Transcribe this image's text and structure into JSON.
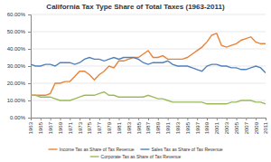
{
  "chart_data": {
    "type": "line",
    "title": "California Tax Type Share of Total Taxes (1963-2011)",
    "x": [
      1963,
      1964,
      1965,
      1966,
      1967,
      1968,
      1969,
      1970,
      1971,
      1972,
      1973,
      1974,
      1975,
      1976,
      1977,
      1978,
      1979,
      1980,
      1981,
      1982,
      1983,
      1984,
      1985,
      1986,
      1987,
      1988,
      1989,
      1990,
      1991,
      1992,
      1993,
      1994,
      1995,
      1996,
      1997,
      1998,
      1999,
      2000,
      2001,
      2002,
      2003,
      2004,
      2005,
      2006,
      2007,
      2008,
      2009,
      2010,
      2011
    ],
    "xlim": [
      1963,
      2011
    ],
    "xticks": [
      1963,
      1965,
      1967,
      1969,
      1971,
      1973,
      1975,
      1977,
      1979,
      1981,
      1983,
      1985,
      1987,
      1989,
      1991,
      1993,
      1995,
      1997,
      1999,
      2001,
      2003,
      2005,
      2007,
      2009,
      2011
    ],
    "ylim": [
      0,
      60
    ],
    "yticks": [
      {
        "value": 0,
        "label": "0.00%"
      },
      {
        "value": 10,
        "label": "10.00%"
      },
      {
        "value": 20,
        "label": "20.00%"
      },
      {
        "value": 30,
        "label": "30.00%"
      },
      {
        "value": 40,
        "label": "40.00%"
      },
      {
        "value": 50,
        "label": "50.00%"
      },
      {
        "value": 60,
        "label": "60.00%"
      }
    ],
    "grid": true,
    "legend": "bottom",
    "series": [
      {
        "name": "Income Tax as Share of Tax Revenue",
        "color": "#e8843a",
        "values": [
          13,
          13,
          13,
          13,
          14,
          20,
          20,
          21,
          21,
          24,
          27,
          27,
          25,
          22,
          25,
          27,
          30,
          29,
          33,
          33,
          34,
          35,
          35,
          37,
          39,
          35,
          35,
          36,
          34,
          34,
          34,
          34,
          35,
          37,
          39,
          41,
          44,
          48,
          49,
          42,
          41,
          42,
          43,
          45,
          46,
          47,
          44,
          43,
          43
        ]
      },
      {
        "name": "Sales Tax as Share of Tax Revenue",
        "color": "#4f81bd",
        "values": [
          31,
          30,
          30,
          31,
          31,
          30,
          32,
          32,
          32,
          31,
          32,
          34,
          35,
          34,
          34,
          33,
          34,
          35,
          34,
          35,
          35,
          35,
          34,
          32,
          31,
          32,
          32,
          32,
          33,
          31,
          30,
          30,
          30,
          29,
          28,
          27,
          30,
          31,
          31,
          30,
          30,
          29,
          29,
          28,
          28,
          29,
          30,
          29,
          26
        ]
      },
      {
        "name": "Corporate Tax as Share of Tax Revenue",
        "color": "#9bbb59",
        "values": [
          13,
          13,
          12,
          12,
          12,
          11,
          10,
          10,
          10,
          11,
          12,
          13,
          13,
          13,
          14,
          15,
          13,
          13,
          12,
          12,
          12,
          12,
          12,
          12,
          13,
          12,
          11,
          11,
          10,
          9,
          9,
          9,
          9,
          9,
          9,
          9,
          8,
          8,
          8,
          8,
          8,
          9,
          9,
          10,
          10,
          10,
          9,
          9,
          8
        ]
      }
    ]
  }
}
